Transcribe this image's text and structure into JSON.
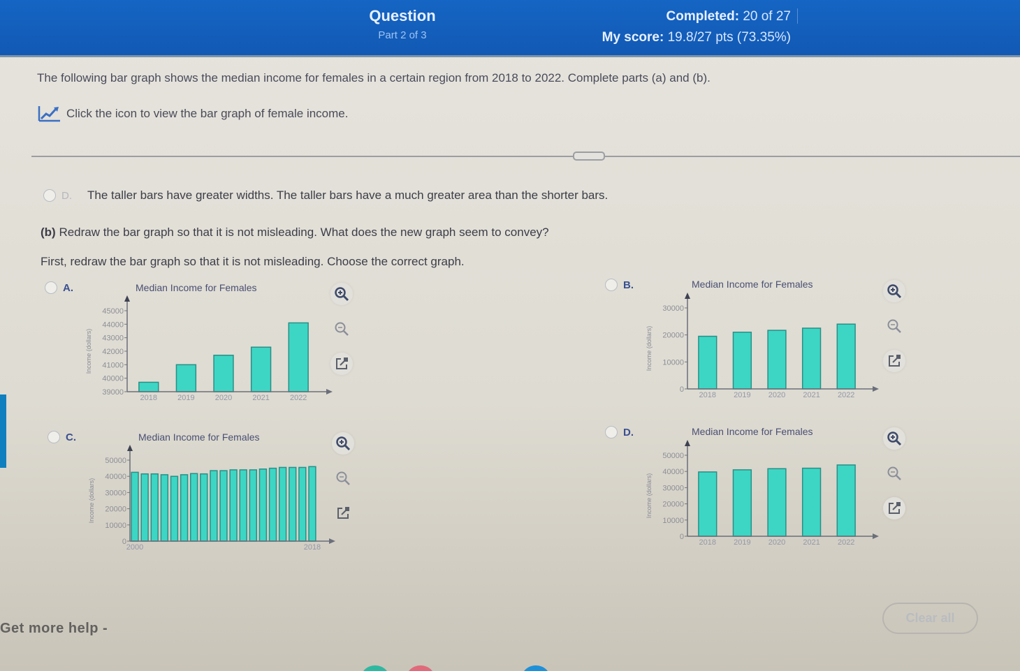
{
  "header": {
    "title": "Question",
    "part": "Part 2 of 3",
    "completed_label": "Completed:",
    "completed_value": "20 of 27",
    "score_label": "My score:",
    "score_value": "19.8/27 pts (73.35%)"
  },
  "question": {
    "intro": "The following bar graph shows the median income for females in a certain region from 2018 to 2022. Complete parts (a) and (b).",
    "icon_link_text": "Click the icon to view the bar graph of female income.",
    "part_a_option_d": {
      "letter": "D.",
      "text": "The taller bars have greater widths. The taller bars have a much greater area than the shorter bars."
    },
    "part_b_label": "(b)",
    "part_b_text": "Redraw the bar graph so that it is not misleading. What does the new graph seem to convey?",
    "instruction": "First, redraw the bar graph so that it is not misleading. Choose the correct graph."
  },
  "choices": [
    {
      "letter": "A.",
      "title": "Median Income for Females",
      "ylabel": "Income (dollars)"
    },
    {
      "letter": "B.",
      "title": "Median Income for Females",
      "ylabel": "Income (dollars)"
    },
    {
      "letter": "C.",
      "title": "Median Income for Females",
      "ylabel": "Income (dollars)"
    },
    {
      "letter": "D.",
      "title": "Median Income for Females",
      "ylabel": "Income (dollars)"
    }
  ],
  "tools": {
    "zoom_in": "zoom-in-icon",
    "zoom_out": "zoom-out-icon",
    "open_new": "external-link-icon"
  },
  "footer": {
    "help": "Get more help -",
    "clear_all": "Clear all"
  },
  "colors": {
    "header_bg": "#1565c4",
    "bar_fill": "#3dd6c4",
    "bar_stroke": "#2a8f86"
  },
  "chart_data": [
    {
      "type": "bar",
      "id": "A",
      "title": "Median Income for Females",
      "xlabel": "",
      "ylabel": "Income (dollars)",
      "categories": [
        "2018",
        "2019",
        "2020",
        "2021",
        "2022"
      ],
      "values": [
        39700,
        41000,
        41700,
        42300,
        44100
      ],
      "ylim": [
        39000,
        45000
      ],
      "yticks": [
        39000,
        40000,
        41000,
        42000,
        43000,
        44000,
        45000
      ]
    },
    {
      "type": "bar",
      "id": "B",
      "title": "Median Income for Females",
      "xlabel": "",
      "ylabel": "Income (dollars)",
      "categories": [
        "2018",
        "2019",
        "2020",
        "2021",
        "2022"
      ],
      "values": [
        19500,
        21000,
        21700,
        22500,
        24000
      ],
      "ylim": [
        0,
        30000
      ],
      "yticks": [
        0,
        10000,
        20000,
        30000
      ]
    },
    {
      "type": "bar",
      "id": "C",
      "title": "Median Income for Females",
      "xlabel": "",
      "ylabel": "Income (dollars)",
      "categories": [
        "2000",
        "2001",
        "2002",
        "2003",
        "2004",
        "2005",
        "2006",
        "2007",
        "2008",
        "2009",
        "2010",
        "2011",
        "2012",
        "2013",
        "2014",
        "2015",
        "2016",
        "2017",
        "2018"
      ],
      "tick_labels_shown": [
        "2000",
        "2018"
      ],
      "values": [
        42500,
        41500,
        41500,
        41000,
        40000,
        41000,
        41700,
        41500,
        43500,
        43500,
        44000,
        44000,
        44000,
        44500,
        45000,
        45500,
        45500,
        45500,
        46000
      ],
      "ylim": [
        0,
        50000
      ],
      "yticks": [
        0,
        10000,
        20000,
        30000,
        40000,
        50000
      ]
    },
    {
      "type": "bar",
      "id": "D",
      "title": "Median Income for Females",
      "xlabel": "",
      "ylabel": "Income (dollars)",
      "categories": [
        "2018",
        "2019",
        "2020",
        "2021",
        "2022"
      ],
      "values": [
        39700,
        41000,
        41700,
        42000,
        44000
      ],
      "ylim": [
        0,
        50000
      ],
      "yticks": [
        0,
        10000,
        20000,
        30000,
        40000,
        50000
      ]
    }
  ]
}
